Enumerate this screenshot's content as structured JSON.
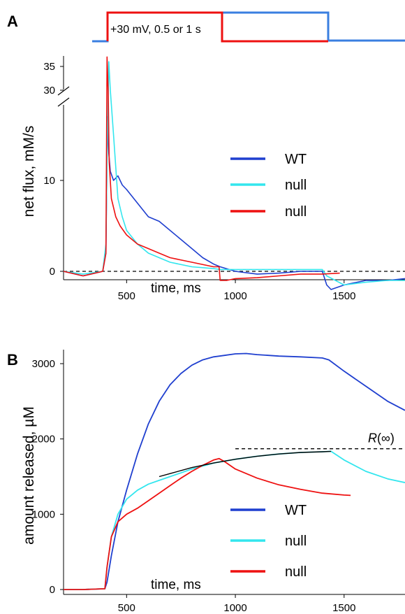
{
  "panels": {
    "A": {
      "letter": "A",
      "stimulus_label": "+30 mV, 0.5 or 1 s"
    },
    "B": {
      "letter": "B"
    }
  },
  "colors": {
    "WT": "#1f3fcf",
    "null_cyan": "#33e6ee",
    "null_red": "#ee1111",
    "protocol": "#3a7fe0",
    "fit": "#000000"
  },
  "chart_data": [
    {
      "type": "line",
      "panel": "A",
      "title": "",
      "xlabel": "time, ms",
      "ylabel": "net flux, mM/s",
      "xlim": [
        210,
        1780
      ],
      "ylim": [
        -2,
        38
      ],
      "y_axis_break": [
        18,
        28
      ],
      "xticks": [
        500,
        1000,
        1500
      ],
      "yticks": [
        0,
        10,
        30,
        35
      ],
      "zero_reference_line": "dashed",
      "legend": {
        "position": "center-right",
        "entries": [
          "WT",
          "null",
          "null"
        ]
      },
      "series": [
        {
          "name": "WT",
          "color_key": "WT",
          "x": [
            210,
            300,
            390,
            405,
            412,
            418,
            425,
            440,
            460,
            480,
            500,
            550,
            600,
            650,
            700,
            750,
            800,
            850,
            900,
            930,
            1000,
            1100,
            1200,
            1300,
            1400,
            1420,
            1440,
            1500,
            1600,
            1700,
            1780
          ],
          "y": [
            0,
            -0.5,
            0,
            2,
            17,
            13,
            11,
            10,
            10.5,
            9.5,
            9,
            7.5,
            6,
            5.5,
            4.5,
            3.5,
            2.5,
            1.5,
            0.8,
            0.5,
            0,
            -0.3,
            -0.2,
            0,
            0,
            -1.5,
            -2,
            -1.5,
            -1,
            -1,
            -0.8
          ]
        },
        {
          "name": "null",
          "color_key": "null_cyan",
          "x": [
            210,
            300,
            390,
            405,
            410,
            418,
            425,
            440,
            460,
            480,
            500,
            550,
            600,
            650,
            700,
            800,
            900,
            930,
            1000,
            1200,
            1400,
            1420,
            1500,
            1600,
            1700,
            1780
          ],
          "y": [
            0,
            -0.3,
            0,
            3,
            12,
            36,
            30,
            15,
            8,
            6,
            4.5,
            3,
            2,
            1.5,
            1,
            0.5,
            0.3,
            0.2,
            0.2,
            0.2,
            0.2,
            -0.5,
            -1.5,
            -1.2,
            -1,
            -1
          ]
        },
        {
          "name": "null",
          "color_key": "null_red",
          "x": [
            210,
            300,
            390,
            405,
            410,
            415,
            420,
            430,
            450,
            470,
            500,
            550,
            600,
            650,
            700,
            800,
            900,
            925,
            930,
            960,
            1000,
            1100,
            1200,
            1300,
            1400,
            1480
          ],
          "y": [
            0,
            -0.5,
            0,
            2,
            37,
            30,
            12,
            8,
            6,
            5,
            4,
            3,
            2.5,
            2,
            1.5,
            1,
            0.5,
            0.5,
            -1,
            -1,
            -0.8,
            -0.7,
            -0.5,
            -0.3,
            -0.3,
            -0.2
          ]
        }
      ]
    },
    {
      "type": "line",
      "panel": "B",
      "title": "",
      "xlabel": "time, ms",
      "ylabel": "amount released, µM",
      "xlim": [
        210,
        1780
      ],
      "ylim": [
        -50,
        3250
      ],
      "xticks": [
        500,
        1000,
        1500
      ],
      "yticks": [
        0,
        1000,
        2000,
        3000
      ],
      "annotations": [
        {
          "text": "R(∞)",
          "italic_part": "R",
          "value": 1870,
          "style": "dashed horizontal asymptote"
        }
      ],
      "legend": {
        "position": "lower-center",
        "entries": [
          "WT",
          "null",
          "null"
        ]
      },
      "series": [
        {
          "name": "WT",
          "color_key": "WT",
          "x": [
            210,
            300,
            400,
            410,
            430,
            460,
            500,
            550,
            600,
            650,
            700,
            750,
            800,
            850,
            900,
            950,
            1000,
            1050,
            1100,
            1200,
            1300,
            1400,
            1430,
            1500,
            1600,
            1700,
            1780
          ],
          "y": [
            0,
            0,
            10,
            100,
            450,
            900,
            1320,
            1800,
            2200,
            2500,
            2720,
            2870,
            2980,
            3050,
            3090,
            3110,
            3130,
            3135,
            3120,
            3100,
            3090,
            3075,
            3050,
            2900,
            2700,
            2500,
            2380
          ]
        },
        {
          "name": "null",
          "color_key": "null_cyan",
          "x": [
            210,
            300,
            400,
            410,
            430,
            460,
            500,
            550,
            600,
            650,
            700,
            800,
            900,
            1000,
            1100,
            1200,
            1300,
            1400,
            1440,
            1500,
            1600,
            1700,
            1780
          ],
          "y": [
            0,
            0,
            10,
            300,
            700,
            1000,
            1200,
            1320,
            1400,
            1450,
            1500,
            1600,
            1680,
            1730,
            1770,
            1800,
            1820,
            1830,
            1835,
            1720,
            1570,
            1470,
            1420
          ]
        },
        {
          "name": "null",
          "color_key": "null_red",
          "x": [
            210,
            300,
            400,
            410,
            430,
            460,
            500,
            550,
            600,
            650,
            700,
            750,
            800,
            850,
            900,
            925,
            950,
            1000,
            1100,
            1200,
            1300,
            1400,
            1500,
            1530
          ],
          "y": [
            0,
            0,
            10,
            300,
            700,
            900,
            1000,
            1080,
            1180,
            1280,
            1380,
            1480,
            1570,
            1650,
            1720,
            1740,
            1700,
            1600,
            1480,
            1390,
            1330,
            1280,
            1255,
            1250
          ]
        }
      ],
      "fit_curve": {
        "color_key": "fit",
        "x": [
          650,
          700,
          800,
          900,
          1000,
          1100,
          1200,
          1300,
          1400,
          1440
        ],
        "y": [
          1500,
          1540,
          1620,
          1680,
          1730,
          1770,
          1800,
          1820,
          1830,
          1835
        ]
      }
    }
  ]
}
